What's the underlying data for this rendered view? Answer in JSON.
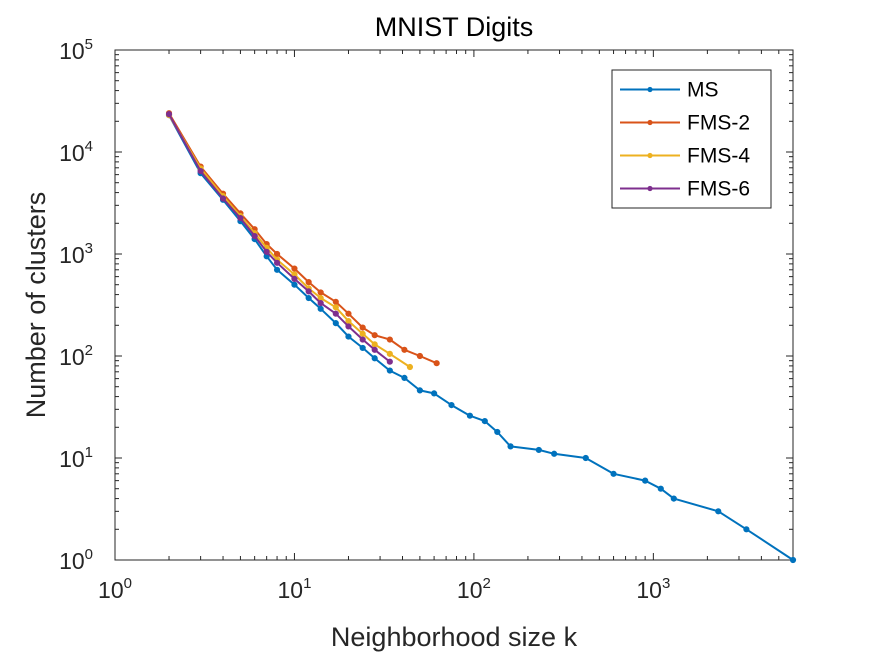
{
  "chart_data": {
    "type": "line",
    "title": "MNIST Digits",
    "xlabel": "Neighborhood size k",
    "ylabel": "Number of clusters",
    "xscale": "log",
    "yscale": "log",
    "xlim": [
      1,
      6000
    ],
    "ylim": [
      1,
      100000
    ],
    "x_ticks": [
      {
        "base": "10",
        "exp": "0",
        "value": 1
      },
      {
        "base": "10",
        "exp": "1",
        "value": 10
      },
      {
        "base": "10",
        "exp": "2",
        "value": 100
      },
      {
        "base": "10",
        "exp": "3",
        "value": 1000
      }
    ],
    "y_ticks": [
      {
        "base": "10",
        "exp": "0",
        "value": 1
      },
      {
        "base": "10",
        "exp": "1",
        "value": 10
      },
      {
        "base": "10",
        "exp": "2",
        "value": 100
      },
      {
        "base": "10",
        "exp": "3",
        "value": 1000
      },
      {
        "base": "10",
        "exp": "4",
        "value": 10000
      },
      {
        "base": "10",
        "exp": "5",
        "value": 100000
      }
    ],
    "legend_position": "top-right",
    "series": [
      {
        "name": "MS",
        "color": "#0072BD",
        "x": [
          2,
          3,
          4,
          5,
          6,
          7,
          8,
          10,
          12,
          14,
          17,
          20,
          24,
          28,
          34,
          41,
          50,
          60,
          75,
          95,
          115,
          135,
          160,
          230,
          280,
          420,
          600,
          900,
          1100,
          1300,
          2300,
          3300,
          6000
        ],
        "y": [
          23000,
          6200,
          3400,
          2100,
          1400,
          950,
          700,
          500,
          370,
          290,
          210,
          155,
          120,
          95,
          72,
          61,
          46,
          43,
          33,
          26,
          23,
          18,
          13,
          12,
          11,
          10,
          7,
          6,
          5,
          4,
          3,
          2,
          1
        ]
      },
      {
        "name": "FMS-2",
        "color": "#D95319",
        "x": [
          2,
          3,
          4,
          5,
          6,
          7,
          8,
          10,
          12,
          14,
          17,
          20,
          24,
          28,
          34,
          41,
          50,
          62
        ],
        "y": [
          24000,
          7200,
          3900,
          2500,
          1750,
          1250,
          1000,
          720,
          530,
          420,
          340,
          260,
          190,
          160,
          145,
          115,
          100,
          85
        ]
      },
      {
        "name": "FMS-4",
        "color": "#EDB120",
        "x": [
          2,
          3,
          4,
          5,
          6,
          7,
          8,
          10,
          12,
          14,
          17,
          20,
          24,
          28,
          34,
          44
        ],
        "y": [
          23000,
          6900,
          3700,
          2350,
          1600,
          1150,
          880,
          630,
          460,
          370,
          300,
          220,
          165,
          130,
          105,
          78
        ]
      },
      {
        "name": "FMS-6",
        "color": "#7E2F8E",
        "x": [
          2,
          3,
          4,
          5,
          6,
          7,
          8,
          10,
          12,
          14,
          17,
          20,
          24,
          28,
          34
        ],
        "y": [
          23500,
          6500,
          3500,
          2250,
          1500,
          1050,
          820,
          570,
          430,
          330,
          260,
          195,
          145,
          115,
          88
        ]
      }
    ]
  }
}
